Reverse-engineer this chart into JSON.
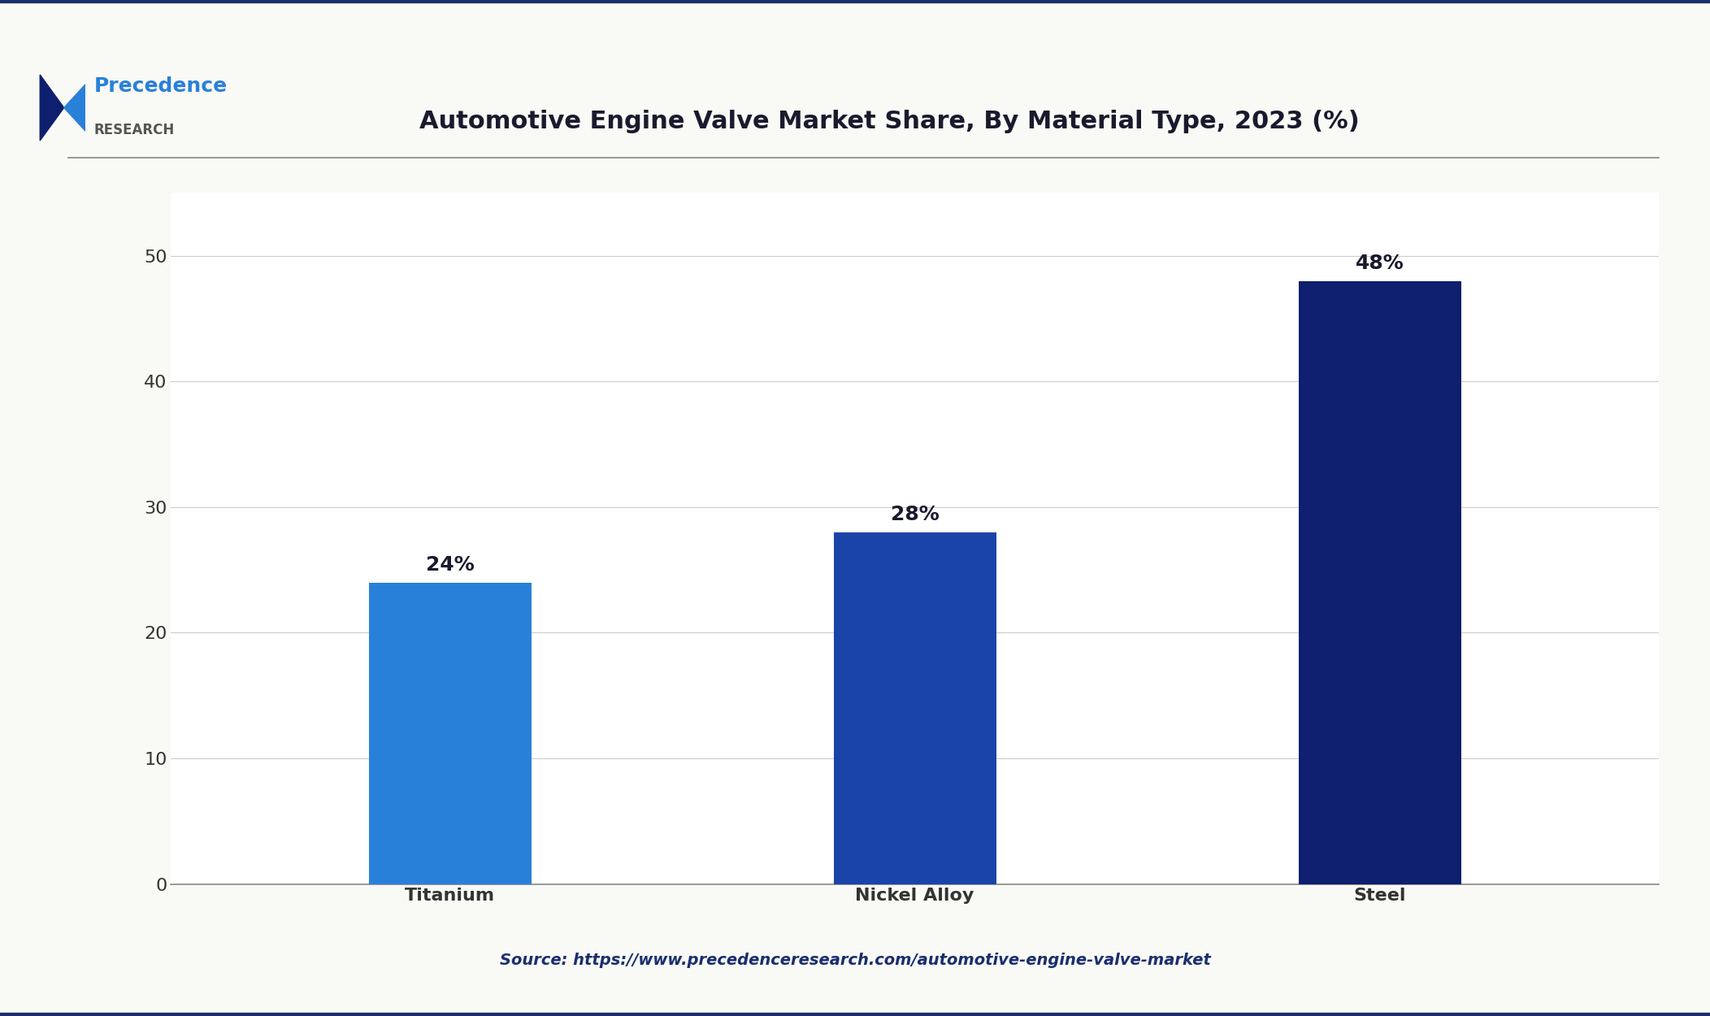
{
  "title": "Automotive Engine Valve Market Share, By Material Type, 2023 (%)",
  "categories": [
    "Titanium",
    "Nickel Alloy",
    "Steel"
  ],
  "values": [
    24,
    28,
    48
  ],
  "labels": [
    "24%",
    "28%",
    "48%"
  ],
  "bar_colors": [
    "#2980d9",
    "#1a44a8",
    "#0d1f6e"
  ],
  "background_color": "#f9f9f5",
  "plot_bg_color": "#ffffff",
  "ylim": [
    0,
    55
  ],
  "yticks": [
    0,
    10,
    20,
    30,
    40,
    50
  ],
  "grid_color": "#cccccc",
  "bar_width": 0.35,
  "source_text": "Source: https://www.precedenceresearch.com/automotive-engine-valve-market",
  "source_color": "#1a2e6e",
  "title_color": "#1a1a2e",
  "tick_color": "#333333",
  "label_fontsize": 18,
  "title_fontsize": 22,
  "tick_fontsize": 16,
  "source_fontsize": 14
}
